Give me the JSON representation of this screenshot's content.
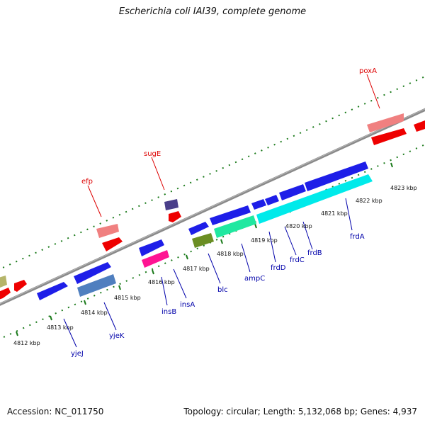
{
  "title": "Escherichia coli IAI39, complete genome",
  "footer": {
    "accession": "Accession: NC_011750",
    "summary": "Topology: circular; Length: 5,132,068 bp; Genes: 4,937"
  },
  "colors": {
    "backbone": "#8a8a8a",
    "tick_dots": "#1a7a1a",
    "top_strand_label": "#dd0000",
    "bottom_strand_label": "#0000aa"
  },
  "scale_ticks": [
    "4812 kbp",
    "4813 kbp",
    "4814 kbp",
    "4815 kbp",
    "4816 kbp",
    "4817 kbp",
    "4818 kbp",
    "4819 kbp",
    "4820 kbp",
    "4821 kbp",
    "4822 kbp",
    "4823 kbp"
  ],
  "gene_labels": [
    "poxA",
    "sugE",
    "efp",
    "frdA",
    "frdB",
    "frdC",
    "frdD",
    "ampC",
    "blc",
    "insA",
    "insB",
    "yjeK",
    "yjeJ"
  ]
}
